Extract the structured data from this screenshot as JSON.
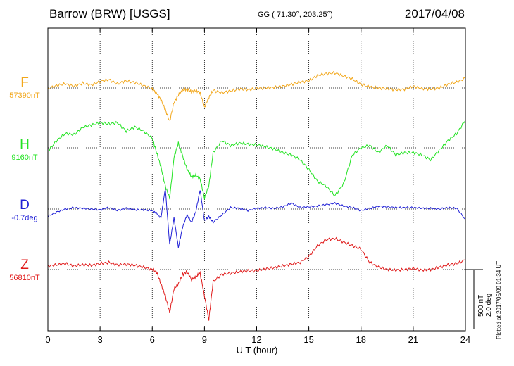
{
  "header": {
    "station": "Barrow (BRW)  [USGS]",
    "coords": "GG ( 71.30°, 203.25°)",
    "date": "2017/04/08"
  },
  "components": [
    {
      "key": "F",
      "label": "F",
      "baseline": "57390nT",
      "color": "#f2a71b"
    },
    {
      "key": "H",
      "label": "H",
      "baseline": "9160nT",
      "color": "#22e322"
    },
    {
      "key": "D",
      "label": "D",
      "baseline": "-0.7deg",
      "color": "#1f1fd6"
    },
    {
      "key": "Z",
      "label": "Z",
      "baseline": "56810nT",
      "color": "#e01a1a"
    }
  ],
  "scale": {
    "nt": "500 nT",
    "deg": "2.0 deg"
  },
  "plotted_note": "Plotted at 2017/05/09 01:34  UT",
  "chart_data": {
    "type": "line",
    "title": "Barrow (BRW)  [USGS]",
    "xlabel": "U T (hour)",
    "ylabel": "",
    "xlim": [
      0,
      24
    ],
    "xticks": [
      0,
      3,
      6,
      9,
      12,
      15,
      18,
      21,
      24
    ],
    "xtick_labels": [
      "0",
      "3",
      "6",
      "9",
      "12",
      "15",
      "18",
      "21",
      "24"
    ],
    "grid": true,
    "y_units_note": "Deviations from each component's baseline; scale 500 nT / 2.0 deg per bar",
    "series": [
      {
        "name": "F",
        "baseline": 57390,
        "units": "nT",
        "x": [
          0,
          0.5,
          1,
          1.5,
          2,
          2.5,
          3,
          3.5,
          4,
          4.5,
          5,
          5.5,
          6,
          6.25,
          6.5,
          6.75,
          7,
          7.25,
          7.5,
          7.75,
          8,
          8.25,
          8.5,
          8.75,
          9,
          9.25,
          9.5,
          10,
          10.5,
          11,
          11.5,
          12,
          12.5,
          13,
          13.5,
          14,
          14.5,
          15,
          15.5,
          16,
          16.5,
          17,
          17.5,
          18,
          18.5,
          19,
          19.5,
          20,
          20.5,
          21,
          21.5,
          22,
          22.5,
          23,
          23.5,
          24
        ],
        "y": [
          -10,
          20,
          35,
          15,
          40,
          25,
          55,
          70,
          35,
          60,
          45,
          20,
          -10,
          -40,
          -100,
          -180,
          -280,
          -120,
          -60,
          -20,
          -10,
          -30,
          -20,
          -40,
          -160,
          -80,
          -20,
          -40,
          -25,
          -10,
          -15,
          -5,
          0,
          5,
          15,
          30,
          50,
          60,
          105,
          120,
          125,
          100,
          75,
          30,
          10,
          0,
          -5,
          -15,
          -10,
          15,
          -5,
          -10,
          0,
          30,
          50,
          80
        ]
      },
      {
        "name": "H",
        "baseline": 9160,
        "units": "nT",
        "x": [
          0,
          0.5,
          1,
          1.5,
          2,
          2.5,
          3,
          3.5,
          4,
          4.5,
          5,
          5.5,
          6,
          6.25,
          6.5,
          6.75,
          7,
          7.25,
          7.5,
          7.75,
          8,
          8.25,
          8.5,
          8.75,
          9,
          9.25,
          9.5,
          10,
          10.5,
          11,
          11.5,
          12,
          12.5,
          13,
          13.5,
          14,
          14.5,
          15,
          15.5,
          16,
          16.5,
          17,
          17.5,
          18,
          18.5,
          19,
          19.5,
          20,
          20.5,
          21,
          21.5,
          22,
          22.5,
          23,
          23.5,
          24
        ],
        "y": [
          -30,
          60,
          120,
          110,
          170,
          190,
          210,
          200,
          210,
          140,
          175,
          140,
          80,
          -40,
          -160,
          -320,
          -420,
          -80,
          40,
          -70,
          -180,
          -240,
          -230,
          -260,
          -420,
          -320,
          -40,
          60,
          20,
          40,
          30,
          25,
          10,
          -10,
          -40,
          -60,
          -100,
          -180,
          -280,
          -320,
          -400,
          -300,
          -60,
          0,
          20,
          -40,
          20,
          -60,
          -40,
          -40,
          -60,
          -100,
          -20,
          60,
          120,
          230
        ]
      },
      {
        "name": "D",
        "baseline": -0.7,
        "units": "deg",
        "x": [
          0,
          0.5,
          1,
          1.5,
          2,
          2.5,
          3,
          3.5,
          4,
          4.5,
          5,
          5.5,
          6,
          6.25,
          6.5,
          6.75,
          7,
          7.25,
          7.5,
          7.75,
          8,
          8.25,
          8.5,
          8.75,
          9,
          9.25,
          9.5,
          10,
          10.5,
          11,
          11.5,
          12,
          12.5,
          13,
          13.5,
          14,
          14.5,
          15,
          15.5,
          16,
          16.5,
          17,
          17.5,
          18,
          18.5,
          19,
          19.5,
          20,
          20.5,
          21,
          21.5,
          22,
          22.5,
          23,
          23.5,
          24
        ],
        "y": [
          -0.5,
          -0.2,
          0,
          0.1,
          0.05,
          0,
          -0.05,
          0.1,
          -0.1,
          0.05,
          -0.05,
          -0.05,
          -0.1,
          -0.3,
          -0.6,
          1.4,
          -2.4,
          -0.6,
          -2.6,
          -1.2,
          -0.4,
          -0.9,
          -0.2,
          1.3,
          -0.8,
          -0.5,
          -0.9,
          -0.4,
          0.1,
          0.05,
          -0.1,
          0.05,
          0.1,
          0.05,
          0.15,
          0.4,
          0.1,
          0.15,
          0.2,
          0.3,
          0.4,
          0.2,
          0.1,
          -0.1,
          0.05,
          0.2,
          0.15,
          0.1,
          0.1,
          0.1,
          0.05,
          0.05,
          0,
          0.1,
          0.05,
          -0.7
        ]
      },
      {
        "name": "Z",
        "baseline": 56810,
        "units": "nT",
        "x": [
          0,
          0.5,
          1,
          1.5,
          2,
          2.5,
          3,
          3.5,
          4,
          4.5,
          5,
          5.5,
          6,
          6.25,
          6.5,
          6.75,
          7,
          7.25,
          7.5,
          7.75,
          8,
          8.25,
          8.5,
          8.75,
          9,
          9.25,
          9.5,
          10,
          10.5,
          11,
          11.5,
          12,
          12.5,
          13,
          13.5,
          14,
          14.5,
          15,
          15.5,
          16,
          16.5,
          17,
          17.5,
          18,
          18.5,
          19,
          19.5,
          20,
          20.5,
          21,
          21.5,
          22,
          22.5,
          23,
          23.5,
          24
        ],
        "y": [
          30,
          40,
          50,
          30,
          40,
          35,
          50,
          60,
          40,
          45,
          35,
          20,
          0,
          -20,
          -120,
          -220,
          -360,
          -160,
          -120,
          -40,
          -20,
          -80,
          -60,
          -30,
          -220,
          -420,
          -100,
          -40,
          -30,
          -20,
          -10,
          -10,
          5,
          15,
          30,
          45,
          60,
          110,
          200,
          250,
          260,
          230,
          200,
          170,
          60,
          20,
          0,
          -5,
          0,
          10,
          -5,
          0,
          20,
          40,
          50,
          80
        ]
      }
    ]
  }
}
